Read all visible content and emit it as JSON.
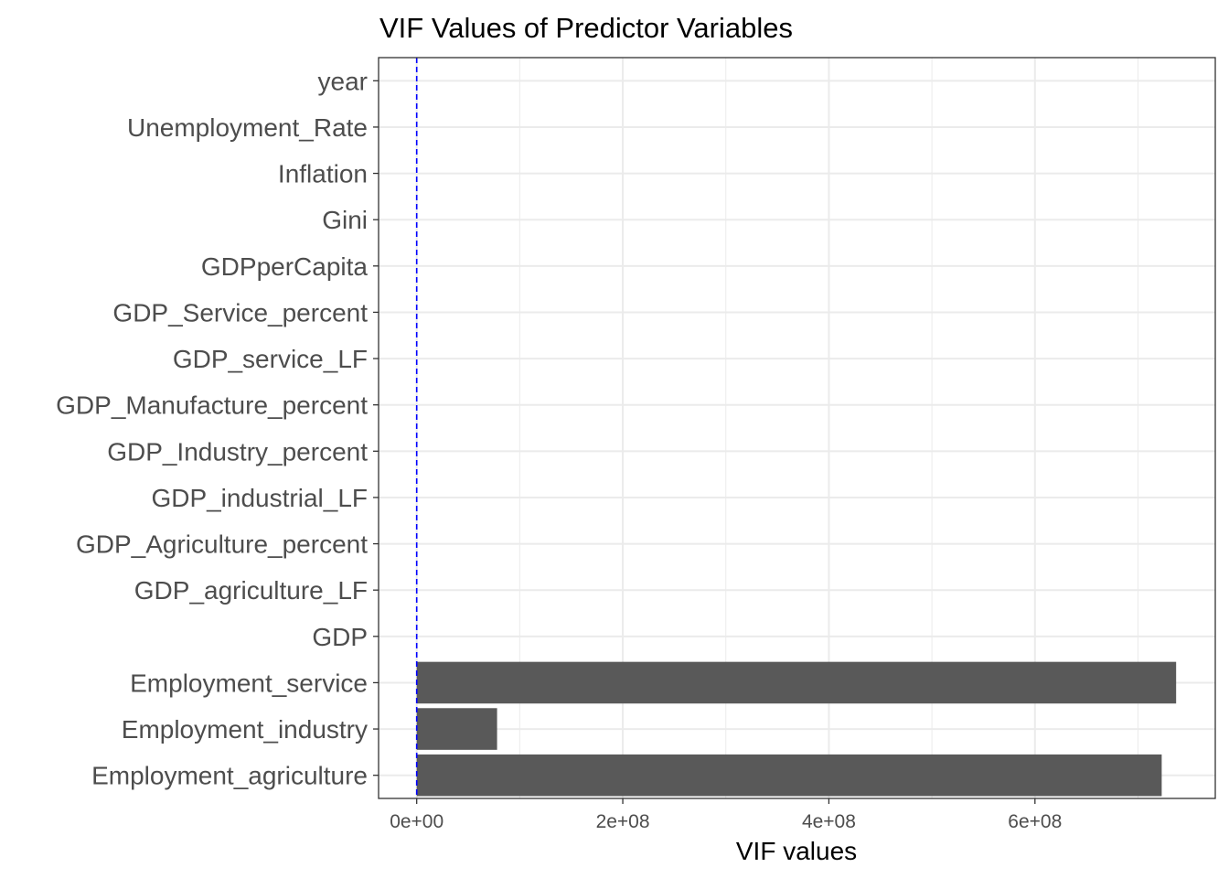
{
  "chart_data": {
    "type": "bar",
    "orientation": "horizontal",
    "title": "VIF Values of Predictor Variables",
    "xlabel": "VIF values",
    "ylabel": "",
    "categories": [
      "Employment_agriculture",
      "Employment_industry",
      "Employment_service",
      "GDP",
      "GDP_agriculture_LF",
      "GDP_Agriculture_percent",
      "GDP_industrial_LF",
      "GDP_Industry_percent",
      "GDP_Manufacture_percent",
      "GDP_service_LF",
      "GDP_Service_percent",
      "GDPperCapita",
      "Gini",
      "Inflation",
      "Unemployment_Rate",
      "year"
    ],
    "values": [
      723000000,
      78000000,
      737000000,
      0,
      0,
      0,
      0,
      0,
      0,
      0,
      0,
      0,
      0,
      0,
      0,
      0
    ],
    "xlim": [
      -37000000,
      775000000
    ],
    "xticks": [
      {
        "value": 0,
        "label": "0e+00"
      },
      {
        "value": 200000000,
        "label": "2e+08"
      },
      {
        "value": 400000000,
        "label": "4e+08"
      },
      {
        "value": 600000000,
        "label": "6e+08"
      }
    ],
    "reference_line": {
      "value": 5,
      "style": "dashed"
    },
    "grid": true,
    "colors": {
      "bar": "#595959",
      "reference_line": "#0000ff",
      "grid": "#ebebeb",
      "panel_border": "#333333"
    }
  }
}
